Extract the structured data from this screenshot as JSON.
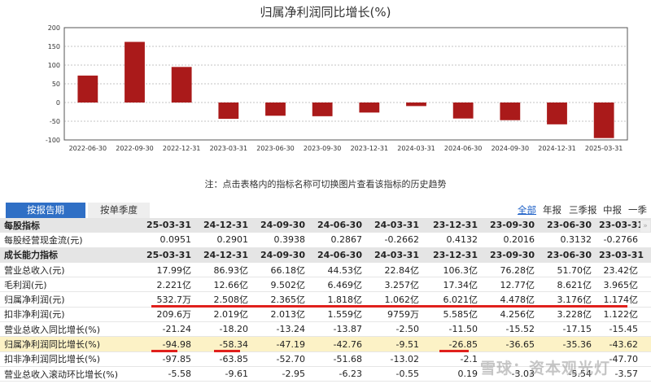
{
  "chart_data": {
    "type": "bar",
    "title": "归属净利润同比增长(%)",
    "categories": [
      "2022-06-30",
      "2022-09-30",
      "2022-12-31",
      "2023-03-31",
      "2023-06-30",
      "2023-09-30",
      "2023-12-31",
      "2024-03-31",
      "2024-06-30",
      "2024-09-30",
      "2024-12-31",
      "2025-03-31"
    ],
    "values": [
      72,
      162,
      95,
      -43.62,
      -35.36,
      -36.65,
      -26.85,
      -9.51,
      -42.76,
      -47.19,
      -58.34,
      -94.98
    ],
    "ylim": [
      -100,
      200
    ],
    "yticks": [
      200,
      150,
      100,
      50,
      0,
      -50,
      -100
    ],
    "grid": true,
    "bar_color": "#aa1a1a"
  },
  "note": "注：点击表格内的指标名称可切换图片查看该指标的历史趋势",
  "tabs": {
    "report": "按报告期",
    "quarter": "按单季度"
  },
  "periods": {
    "all": "全部",
    "year": "年报",
    "q3": "三季报",
    "mid": "中报",
    "q1": "一季报"
  },
  "table": {
    "header1": [
      "每股指标",
      "25-03-31",
      "24-12-31",
      "24-09-30",
      "24-06-30",
      "24-03-31",
      "23-12-31",
      "23-09-30",
      "23-06-30",
      "23-03-31"
    ],
    "row_cash": [
      "每股经营现金流(元)",
      "0.0951",
      "0.2901",
      "0.3938",
      "0.2867",
      "-0.2662",
      "0.4132",
      "0.2016",
      "0.3132",
      "-0.2766"
    ],
    "header2": [
      "成长能力指标",
      "25-03-31",
      "24-12-31",
      "24-09-30",
      "24-06-30",
      "24-03-31",
      "23-12-31",
      "23-09-30",
      "23-06-30",
      "23-03-31"
    ],
    "row_rev": [
      "营业总收入(元)",
      "17.99亿",
      "86.93亿",
      "66.18亿",
      "44.53亿",
      "22.84亿",
      "106.3亿",
      "76.28亿",
      "51.70亿",
      "23.42亿"
    ],
    "row_gross": [
      "毛利润(元)",
      "2.221亿",
      "12.66亿",
      "9.502亿",
      "6.469亿",
      "3.257亿",
      "17.34亿",
      "12.77亿",
      "8.621亿",
      "3.965亿"
    ],
    "row_np": [
      "归属净利润(元)",
      "532.7万",
      "2.508亿",
      "2.365亿",
      "1.818亿",
      "1.062亿",
      "6.021亿",
      "4.478亿",
      "3.176亿",
      "1.174亿"
    ],
    "row_dnp": [
      "扣非净利润(元)",
      "209.6万",
      "2.019亿",
      "2.013亿",
      "1.559亿",
      "9759万",
      "5.585亿",
      "4.256亿",
      "3.228亿",
      "1.122亿"
    ],
    "row_revg": [
      "营业总收入同比增长(%)",
      "-21.24",
      "-18.20",
      "-13.24",
      "-13.87",
      "-2.50",
      "-11.50",
      "-15.52",
      "-17.15",
      "-15.45"
    ],
    "row_npg": [
      "归属净利润同比增长(%)",
      "-94.98",
      "-58.34",
      "-47.19",
      "-42.76",
      "-9.51",
      "-26.85",
      "-36.65",
      "-35.36",
      "-43.62"
    ],
    "row_dnpg": [
      "扣非净利润同比增长(%)",
      "-97.85",
      "-63.85",
      "-52.70",
      "-51.68",
      "-13.02",
      "-2.1",
      "",
      "",
      "-47.70"
    ],
    "row_roll": [
      "营业总收入滚动环比增长(%)",
      "-5.58",
      "-9.61",
      "-2.95",
      "-6.23",
      "-0.55",
      "0.19",
      "-3.03",
      "-5.54",
      "-3.57"
    ]
  },
  "scroll_icon": "double-right-arrow-icon",
  "watermark": "雪球：资本观光灯"
}
